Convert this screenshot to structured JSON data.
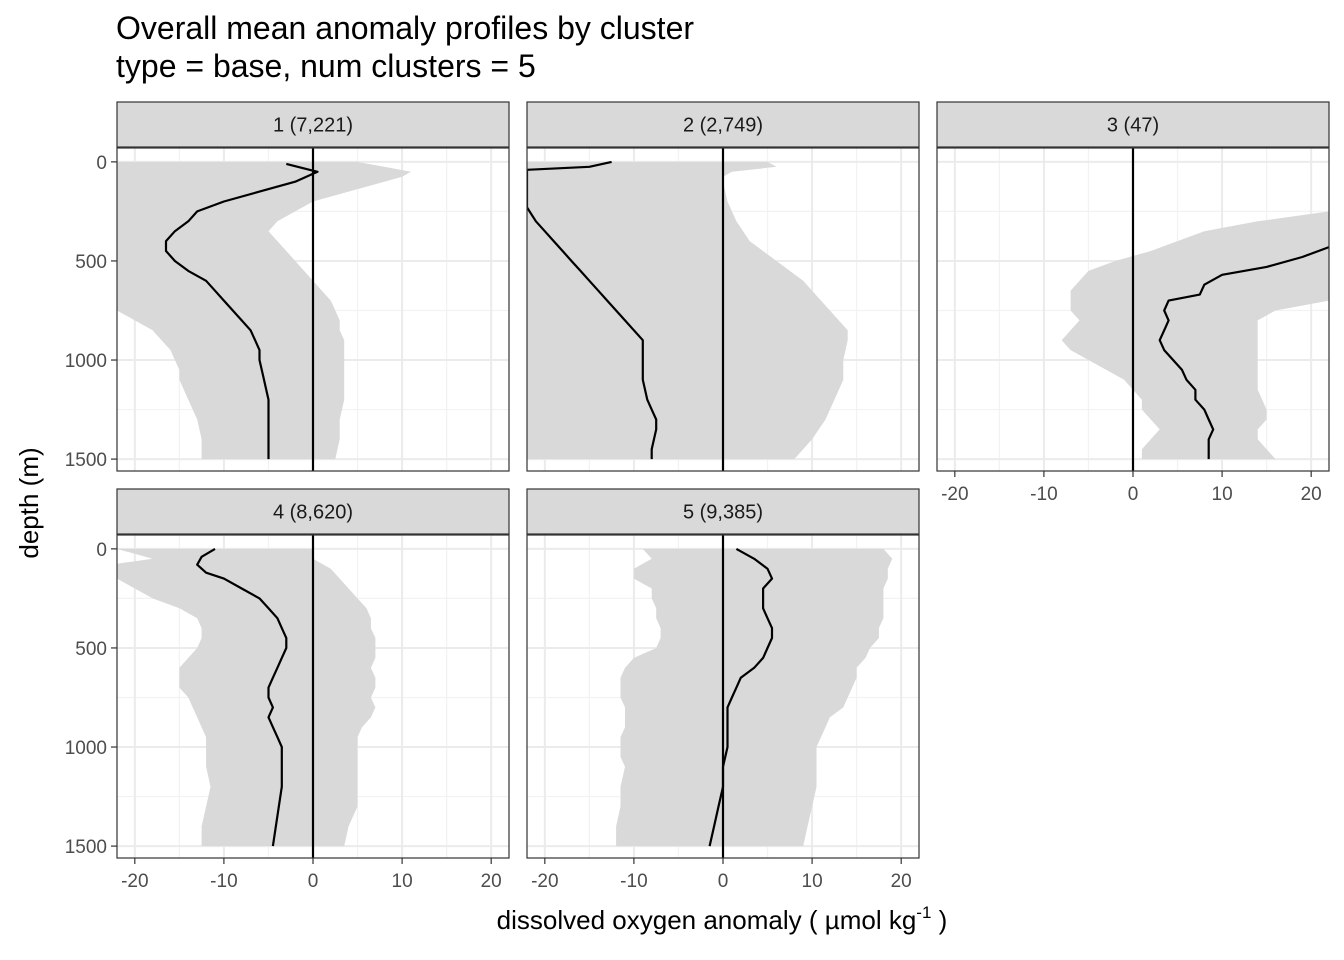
{
  "chart_data": {
    "type": "line",
    "title": "Overall mean anomaly profiles by cluster",
    "subtitle": "type = base, num clusters = 5",
    "xlabel": "dissolved oxygen anomaly ( µmol kg",
    "xlabel_sup": "-1",
    "xlabel_end": " )",
    "ylabel": "depth (m)",
    "xlim": [
      -22,
      22
    ],
    "ylim": [
      1560,
      -70
    ],
    "y_reversed": true,
    "x_ticks": [
      -20,
      -10,
      0,
      10,
      20
    ],
    "y_ticks": [
      0,
      500,
      1000,
      1500
    ],
    "x_tick_labels": [
      "-20",
      "-10",
      "0",
      "10",
      "20"
    ],
    "y_tick_labels": [
      "0",
      "500",
      "1000",
      "1500"
    ],
    "grid": true,
    "reference_line_x": 0,
    "colors": {
      "band": "#d9d9d9",
      "line": "#000000",
      "strip": "#d9d9d9",
      "grid_major": "#ebebeb",
      "border": "#333333"
    },
    "panels": [
      {
        "label": "1 (7,221)",
        "mean": {
          "x": [
            -3,
            0.5,
            -2,
            -6,
            -10,
            -13,
            -14,
            -15.5,
            -16.5,
            -16.5,
            -15.5,
            -14,
            -12,
            -11,
            -10,
            -9,
            -8,
            -7,
            -6.5,
            -6,
            -6,
            -5.5,
            -5,
            -5,
            -5,
            -5,
            -5
          ],
          "y": [
            10,
            50,
            100,
            150,
            200,
            250,
            300,
            350,
            400,
            450,
            500,
            550,
            600,
            650,
            700,
            750,
            800,
            850,
            900,
            950,
            1000,
            1100,
            1200,
            1250,
            1300,
            1400,
            1500
          ]
        },
        "band": {
          "y": [
            0,
            25,
            50,
            75,
            100,
            150,
            200,
            250,
            300,
            350,
            400,
            450,
            500,
            550,
            600,
            650,
            700,
            750,
            800,
            850,
            900,
            950,
            1000,
            1050,
            1100,
            1200,
            1300,
            1400,
            1500
          ],
          "lower": [
            -22,
            -22,
            -22,
            -22,
            -22,
            -22,
            -22,
            -22,
            -22,
            -22,
            -22,
            -22,
            -22,
            -22,
            -22,
            -22,
            -22,
            -22,
            -20,
            -18,
            -17,
            -16,
            -15.5,
            -15,
            -15,
            -14,
            -13,
            -12.5,
            -12.5
          ],
          "upper": [
            5,
            8,
            11,
            10,
            8,
            4,
            0,
            -2,
            -4,
            -5,
            -4,
            -3,
            -2,
            -1,
            0,
            1,
            2,
            2.5,
            3,
            3,
            3.5,
            3.5,
            3.5,
            3.5,
            3.5,
            3.5,
            3,
            3,
            2.5
          ]
        }
      },
      {
        "label": "2 (2,749)",
        "mean": {
          "x": [
            -12.5,
            -15,
            -22,
            -22,
            -21,
            -20,
            -19,
            -18,
            -17,
            -16,
            -15,
            -14,
            -13,
            -12,
            -11,
            -10,
            -9,
            -9,
            -9,
            -8.5,
            -8,
            -7.5,
            -7.5,
            -8,
            -8
          ],
          "y": [
            0,
            25,
            40,
            230,
            300,
            350,
            400,
            450,
            500,
            550,
            600,
            650,
            700,
            750,
            800,
            850,
            900,
            1000,
            1100,
            1200,
            1250,
            1300,
            1350,
            1450,
            1500
          ]
        },
        "band": {
          "y": [
            0,
            25,
            50,
            75,
            100,
            200,
            300,
            400,
            500,
            600,
            700,
            800,
            850,
            900,
            1000,
            1100,
            1200,
            1300,
            1400,
            1500
          ],
          "lower": [
            -22,
            -22,
            -22,
            -22,
            -22,
            -22,
            -22,
            -22,
            -22,
            -22,
            -22,
            -22,
            -22,
            -22,
            -22,
            -22,
            -22,
            -22,
            -22,
            -22
          ],
          "upper": [
            5,
            6,
            1,
            0,
            0,
            0.5,
            1.5,
            3,
            6,
            9,
            11,
            13,
            14,
            14,
            13.5,
            13.5,
            12.5,
            11.5,
            10,
            8
          ]
        }
      },
      {
        "label": "3 (47)",
        "mean": {
          "x": [
            22,
            19,
            15,
            10,
            8,
            7.5,
            4,
            3.5,
            4,
            3.5,
            3,
            3.5,
            4.5,
            5.5,
            6,
            7,
            7,
            8,
            8.5,
            9,
            8.5,
            8.5
          ],
          "y": [
            430,
            480,
            530,
            570,
            620,
            670,
            700,
            750,
            800,
            850,
            900,
            950,
            1000,
            1050,
            1100,
            1150,
            1200,
            1250,
            1300,
            1350,
            1400,
            1500
          ]
        },
        "band": {
          "y": [
            250,
            300,
            350,
            400,
            450,
            500,
            550,
            600,
            650,
            700,
            750,
            800,
            850,
            900,
            950,
            1000,
            1050,
            1100,
            1150,
            1200,
            1250,
            1300,
            1350,
            1400,
            1450,
            1500
          ],
          "lower": [
            22,
            14,
            8,
            5,
            2,
            -2,
            -5,
            -6,
            -7,
            -7,
            -7,
            -6,
            -7,
            -8,
            -7,
            -5,
            -3,
            -1,
            0,
            1,
            1,
            2,
            3,
            2,
            1,
            1
          ],
          "upper": [
            22,
            22,
            22,
            22,
            22,
            22,
            22,
            22,
            22,
            22,
            16,
            14,
            14,
            14,
            14,
            14,
            14,
            14,
            14,
            14.5,
            15,
            15,
            14,
            14,
            15,
            16
          ]
        }
      },
      {
        "label": "4 (8,620)",
        "mean": {
          "x": [
            -11,
            -12.5,
            -13,
            -12,
            -10,
            -8,
            -6,
            -5,
            -4,
            -3.5,
            -3,
            -3,
            -3.5,
            -4,
            -4.5,
            -5,
            -5,
            -4.5,
            -5,
            -4.5,
            -4,
            -3.5,
            -3.5,
            -3.5,
            -4.5
          ],
          "y": [
            0,
            40,
            80,
            120,
            150,
            200,
            250,
            300,
            350,
            400,
            450,
            500,
            550,
            600,
            650,
            700,
            750,
            800,
            850,
            900,
            950,
            1000,
            1100,
            1200,
            1500
          ]
        },
        "band": {
          "y": [
            0,
            50,
            75,
            100,
            150,
            200,
            250,
            300,
            350,
            400,
            450,
            500,
            550,
            600,
            650,
            700,
            750,
            800,
            850,
            900,
            950,
            1000,
            1050,
            1100,
            1200,
            1300,
            1400,
            1500
          ],
          "lower": [
            -22,
            -18,
            -22,
            -22,
            -22,
            -20,
            -18,
            -15,
            -13,
            -12.5,
            -12.5,
            -13,
            -14,
            -15,
            -15,
            -15,
            -14,
            -13.5,
            -13,
            -12.5,
            -12,
            -12,
            -12,
            -12,
            -11.5,
            -12,
            -12.5,
            -12.5
          ],
          "upper": [
            0,
            0,
            1,
            2,
            3,
            4,
            5,
            6,
            6.5,
            6.5,
            7,
            7,
            7,
            6.5,
            7,
            7,
            6.5,
            7,
            6.5,
            5.5,
            5,
            5,
            5,
            5,
            5,
            5,
            4,
            3.5
          ]
        }
      },
      {
        "label": "5 (9,385)",
        "mean": {
          "x": [
            1.5,
            3.5,
            5,
            5.5,
            4.5,
            4.5,
            5,
            5.5,
            5.5,
            5,
            4.5,
            3.5,
            2,
            1.5,
            1,
            0.5,
            0.5,
            0.5,
            0,
            0,
            -0.5,
            -1,
            -1.5
          ],
          "y": [
            0,
            50,
            100,
            150,
            200,
            300,
            350,
            400,
            450,
            500,
            550,
            600,
            650,
            700,
            750,
            800,
            900,
            1000,
            1100,
            1200,
            1300,
            1400,
            1500
          ]
        },
        "band": {
          "y": [
            0,
            50,
            100,
            150,
            200,
            250,
            300,
            350,
            400,
            450,
            500,
            550,
            600,
            650,
            700,
            750,
            800,
            850,
            900,
            950,
            1000,
            1050,
            1100,
            1200,
            1300,
            1400,
            1500
          ],
          "lower": [
            -9,
            -8,
            -10,
            -10,
            -8,
            -8,
            -7.5,
            -7.5,
            -7,
            -7,
            -7.5,
            -10,
            -11,
            -11.5,
            -11.5,
            -11.5,
            -11,
            -11,
            -11,
            -11.5,
            -11.5,
            -11.5,
            -11,
            -11.5,
            -11.5,
            -12,
            -12
          ],
          "upper": [
            18,
            19,
            18.5,
            18.5,
            18,
            18,
            18,
            18,
            17.5,
            17.5,
            16.5,
            16,
            15,
            15,
            14.5,
            14,
            13.5,
            12,
            11.5,
            11,
            10.5,
            10.5,
            10.5,
            10.5,
            10,
            9.5,
            9
          ]
        }
      }
    ]
  }
}
